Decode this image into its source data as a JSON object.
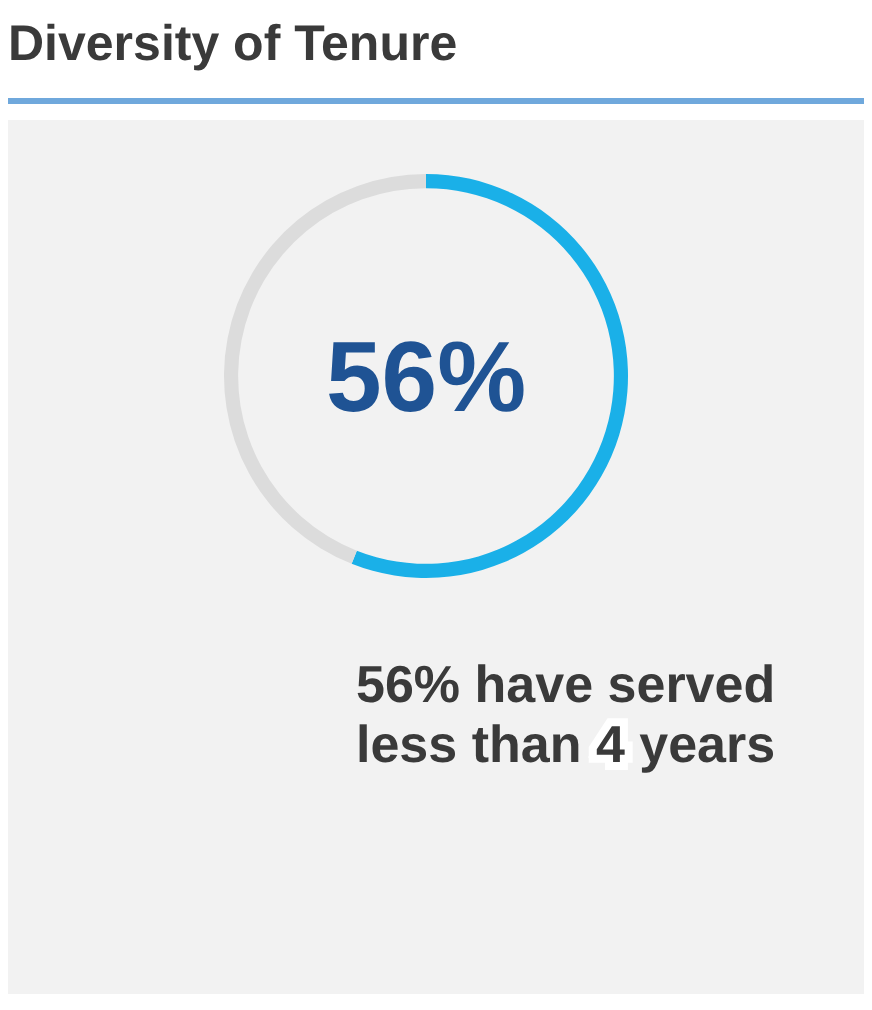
{
  "chart_data": {
    "type": "donut",
    "title": "Diversity of Tenure",
    "categories": [
      null,
      null
    ],
    "values": [
      56,
      44
    ],
    "colors": [
      "#1ab0e8",
      "#dcdcdc"
    ],
    "annotations": [
      "56%",
      "56% have served less than 4 years"
    ]
  }
}
